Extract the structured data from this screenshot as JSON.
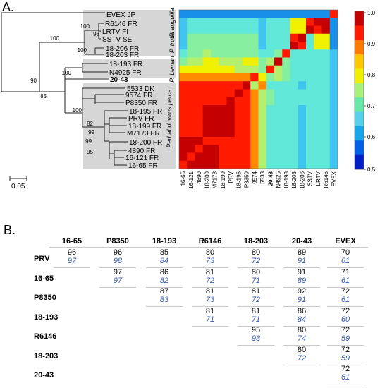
{
  "panel_a": {
    "label": "A.",
    "scale_label": "0.05",
    "tree_leaves": [
      "EVEX JP",
      "R6146 FR",
      "LRTV FI",
      "SSTV SE",
      "18-206 FR",
      "18-203 FR",
      "18-193 FR",
      "N4925 FR",
      "20-43",
      "5533 DK",
      "9574 FR",
      "P8350 FR",
      "18-195 FR",
      "PRV FR",
      "18-199 FR",
      "M7173 FR",
      "18-200 FR",
      "4890 FR",
      "16-121 FR",
      "16-65 FR"
    ],
    "bootstrap": [
      "100",
      "93",
      "100",
      "100",
      "90",
      "85",
      "100",
      "100",
      "82",
      "99",
      "99",
      "95"
    ],
    "species": [
      "P. anguilla",
      "P. trutta",
      "P. Leman",
      "Perhabdovirus perca"
    ],
    "heatmap_labels": [
      "16-65",
      "16-121",
      "4890",
      "18-200",
      "M7173",
      "18-199",
      "PRV",
      "18-195",
      "P8350",
      "9574",
      "5533",
      "20-43",
      "N4925",
      "18-193",
      "18-203",
      "18-206",
      "SSTV",
      "LRTV",
      "R6146",
      "EVEX"
    ],
    "heatmap_bold_label": "20-43",
    "legend_ticks": [
      "1.0",
      "0.9",
      "0.8",
      "0.7",
      "0.6",
      "0.5"
    ],
    "legend_colors": [
      "#c40000",
      "#ff1a00",
      "#ff7a00",
      "#ffc800",
      "#eef000",
      "#a6f07a",
      "#66e8a8",
      "#55d2ea",
      "#18a6ea",
      "#0060e8",
      "#001ec8"
    ]
  },
  "panel_b": {
    "label": "B.",
    "columns": [
      "16-65",
      "P8350",
      "18-193",
      "R6146",
      "18-203",
      "20-43",
      "EVEX"
    ],
    "rows": [
      {
        "label": "PRV",
        "cells": [
          [
            "96",
            "97"
          ],
          [
            "96",
            "98"
          ],
          [
            "85",
            "84"
          ],
          [
            "80",
            "73"
          ],
          [
            "80",
            "72"
          ],
          [
            "89",
            "91"
          ],
          [
            "70",
            "61"
          ]
        ]
      },
      {
        "label": "16-65",
        "cells": [
          null,
          [
            "97",
            "97"
          ],
          [
            "86",
            "82"
          ],
          [
            "81",
            "72"
          ],
          [
            "80",
            "71"
          ],
          [
            "91",
            "89"
          ],
          [
            "71",
            "61"
          ]
        ]
      },
      {
        "label": "P8350",
        "cells": [
          null,
          null,
          [
            "87",
            "83"
          ],
          [
            "81",
            "73"
          ],
          [
            "81",
            "72"
          ],
          [
            "92",
            "91"
          ],
          [
            "72",
            "61"
          ]
        ]
      },
      {
        "label": "18-193",
        "cells": [
          null,
          null,
          null,
          [
            "81",
            "71"
          ],
          [
            "81",
            "71"
          ],
          [
            "86",
            "84"
          ],
          [
            "72",
            "60"
          ]
        ]
      },
      {
        "label": "R6146",
        "cells": [
          null,
          null,
          null,
          null,
          [
            "95",
            "93"
          ],
          [
            "80",
            "74"
          ],
          [
            "72",
            "59"
          ]
        ]
      },
      {
        "label": "18-203",
        "cells": [
          null,
          null,
          null,
          null,
          null,
          [
            "80",
            "72"
          ],
          [
            "72",
            "59"
          ]
        ]
      },
      {
        "label": "20-43",
        "cells": [
          null,
          null,
          null,
          null,
          null,
          null,
          [
            "72",
            "61"
          ]
        ]
      }
    ]
  }
}
